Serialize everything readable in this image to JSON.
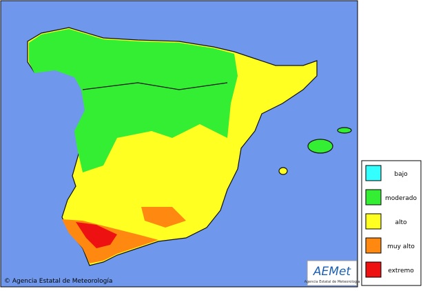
{
  "map": {
    "legend": [
      {
        "label": "bajo",
        "color": "#33ffff"
      },
      {
        "label": "moderado",
        "color": "#33ee33"
      },
      {
        "label": "alto",
        "color": "#ffff22"
      },
      {
        "label": "muy alto",
        "color": "#ff8811"
      },
      {
        "label": "extremo",
        "color": "#ee1111"
      }
    ],
    "copyright": "© Agencia Estatal de Meteorología",
    "logo": {
      "name": "AEMet",
      "subtitle": "Agencia Estatal de Meteorología"
    }
  }
}
